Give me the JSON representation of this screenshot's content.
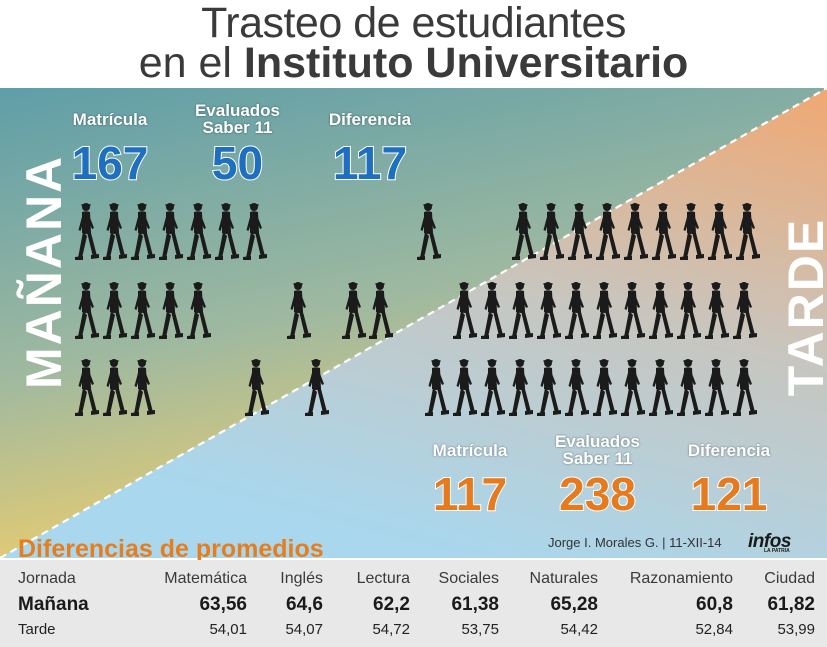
{
  "title": {
    "line1": "Trasteo de estudiantes",
    "line2_prefix": "en el ",
    "line2_bold": "Instituto Universitario"
  },
  "manana": {
    "label": "MAÑANA",
    "stats": [
      {
        "label": "Matrícula",
        "value": "167"
      },
      {
        "label": "Evaluados Saber 11",
        "value": "50"
      },
      {
        "label": "Diferencia",
        "value": "117"
      }
    ]
  },
  "tarde": {
    "label": "TARDE",
    "stats": [
      {
        "label": "Matrícula",
        "value": "117"
      },
      {
        "label": "Evaluados Saber 11",
        "value": "238"
      },
      {
        "label": "Diferencia",
        "value": "121"
      }
    ]
  },
  "credit": "Jorge I. Morales G.  |  11-XII-14",
  "logo": {
    "name": "infos",
    "sub": "LA PATRIA"
  },
  "table": {
    "title": "Diferencias de promedios",
    "headers": [
      "Jornada",
      "Matemática",
      "Inglés",
      "Lectura",
      "Sociales",
      "Naturales",
      "Razonamiento",
      "Ciudad"
    ],
    "rows": [
      {
        "jornada": "Mañana",
        "values": [
          "63,56",
          "64,6",
          "62,2",
          "61,38",
          "65,28",
          "60,8",
          "61,82"
        ]
      },
      {
        "jornada": "Tarde",
        "values": [
          "54,01",
          "54,07",
          "54,72",
          "53,75",
          "54,42",
          "52,84",
          "53,99"
        ]
      }
    ]
  },
  "colors": {
    "blue_number": "#1f6fc1",
    "orange_number": "#e67a1e",
    "manana_bg_top": "#6aa7b0",
    "tarde_bg_top": "#eeaa78",
    "silhouette": "#1b1b1b"
  },
  "icons": [
    "walking-person-icon"
  ]
}
